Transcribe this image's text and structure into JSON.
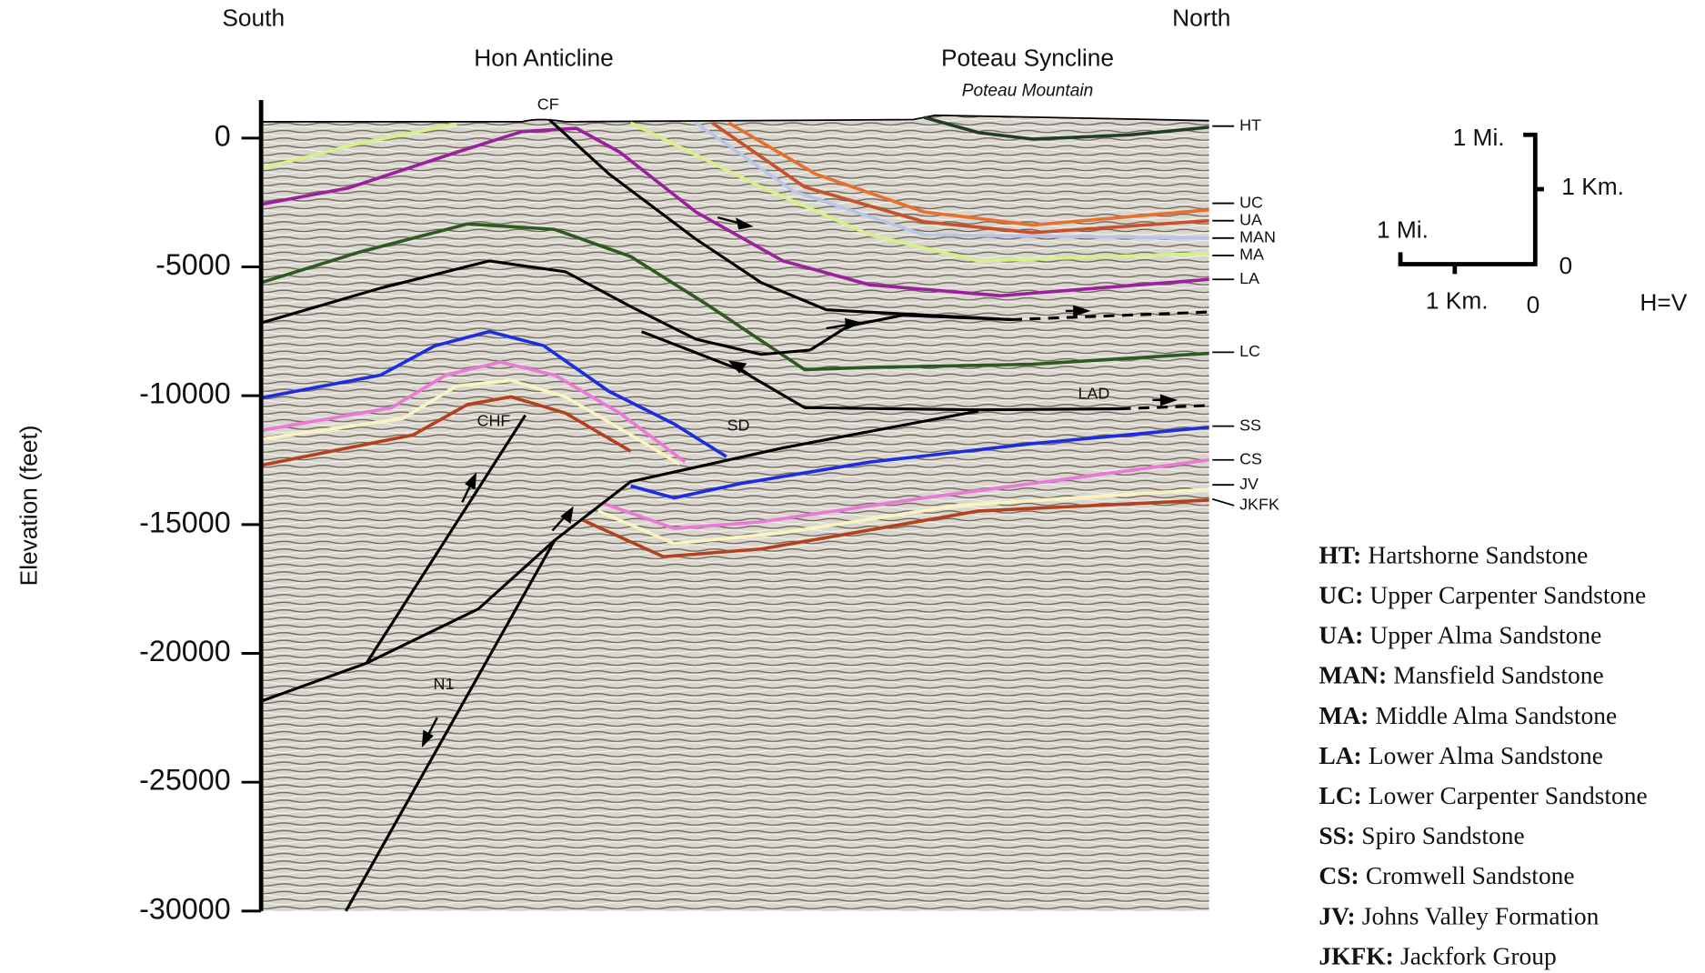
{
  "header": {
    "left": "South",
    "right": "North"
  },
  "structures": {
    "anticline": "Hon Anticline",
    "syncline": "Poteau Syncline",
    "mountain": "Poteau Mountain"
  },
  "axis": {
    "label": "Elevation (feet)",
    "ylim": [
      0,
      -30000
    ],
    "ticks": [
      0,
      -5000,
      -10000,
      -15000,
      -20000,
      -25000,
      -30000
    ]
  },
  "faults": [
    "CF",
    "CHF",
    "SD",
    "LAD",
    "N1"
  ],
  "horizons": [
    "HT",
    "UC",
    "UA",
    "MAN",
    "MA",
    "LA",
    "LC",
    "SS",
    "CS",
    "JV",
    "JKFK"
  ],
  "scale": {
    "vertical_top": "1 Mi.",
    "vertical_mid": "1 Km.",
    "horizontal_left": "1 Mi.",
    "vertical_zero": "0",
    "horizontal_mid": "1 Km.",
    "horizontal_zero": "0",
    "ratio": "H=V"
  },
  "legend": [
    {
      "abbr": "HT:",
      "name": "Hartshorne Sandstone"
    },
    {
      "abbr": "UC:",
      "name": "Upper Carpenter Sandstone"
    },
    {
      "abbr": "UA:",
      "name": "Upper Alma Sandstone"
    },
    {
      "abbr": "MAN:",
      "name": "Mansfield Sandstone"
    },
    {
      "abbr": "MA:",
      "name": "Middle Alma Sandstone"
    },
    {
      "abbr": "LA:",
      "name": "Lower Alma Sandstone"
    },
    {
      "abbr": "LC:",
      "name": "Lower Carpenter Sandstone"
    },
    {
      "abbr": "SS:",
      "name": "Spiro Sandstone"
    },
    {
      "abbr": "CS:",
      "name": "Cromwell Sandstone"
    },
    {
      "abbr": "JV:",
      "name": "Johns Valley Formation"
    },
    {
      "abbr": "JKFK:",
      "name": "Jackfork Group"
    }
  ]
}
